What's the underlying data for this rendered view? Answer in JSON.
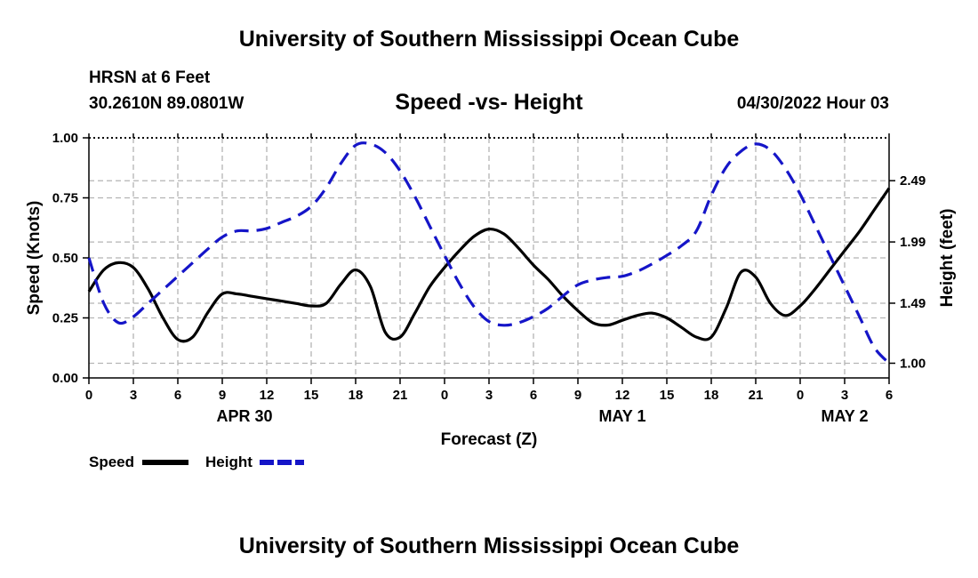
{
  "header": {
    "title_top": "University of Southern Mississippi Ocean Cube",
    "title_bottom": "University of Southern Mississippi Ocean Cube",
    "station": "HRSN at 6 Feet",
    "coords": "30.2610N  89.0801W",
    "chart_title": "Speed -vs- Height",
    "timestamp": "04/30/2022 Hour 03"
  },
  "chart_data": {
    "type": "line",
    "title": "Speed -vs- Height",
    "xlabel": "Forecast (Z)",
    "ylabel": "Speed (Knots)",
    "y2label": "Height (feet)",
    "xlim": [
      0,
      54
    ],
    "ylim": [
      0,
      1.0
    ],
    "y2lim": [
      0.88,
      2.84
    ],
    "grid": true,
    "x_tick_labels": [
      "0",
      "3",
      "6",
      "9",
      "12",
      "15",
      "18",
      "21",
      "0",
      "3",
      "6",
      "9",
      "12",
      "15",
      "18",
      "21",
      "0",
      "3",
      "6"
    ],
    "y_ticks": [
      {
        "value": 0.0,
        "label": "0.00"
      },
      {
        "value": 0.25,
        "label": "0.25"
      },
      {
        "value": 0.5,
        "label": "0.50"
      },
      {
        "value": 0.75,
        "label": "0.75"
      },
      {
        "value": 1.0,
        "label": "1.00"
      }
    ],
    "y2_ticks": [
      {
        "value": 1.0,
        "label": "1.00"
      },
      {
        "value": 1.49,
        "label": "1.49"
      },
      {
        "value": 1.99,
        "label": "1.99"
      },
      {
        "value": 2.49,
        "label": "2.49"
      }
    ],
    "day_labels": [
      {
        "x": 10.5,
        "label": "APR 30"
      },
      {
        "x": 36,
        "label": "MAY 1"
      },
      {
        "x": 51,
        "label": "MAY 2"
      }
    ],
    "legend": [
      {
        "name": "Speed",
        "color": "#000000",
        "style": "solid"
      },
      {
        "name": "Height",
        "color": "#1515c8",
        "style": "dashed"
      }
    ],
    "legend_placement": "bottom-left",
    "series": [
      {
        "name": "Speed",
        "axis": "left",
        "color": "#000000",
        "x": [
          0,
          1,
          2,
          3,
          4,
          5,
          6,
          7,
          8,
          9,
          10,
          11,
          12,
          13,
          14,
          15,
          16,
          17,
          18,
          19,
          20,
          21,
          22,
          23,
          24,
          25,
          26,
          27,
          28,
          29,
          30,
          31,
          32,
          33,
          34,
          35,
          36,
          37,
          38,
          39,
          40,
          41,
          42,
          43,
          44,
          45,
          46,
          47,
          48,
          49,
          50,
          51,
          52,
          53,
          54
        ],
        "values": [
          0.36,
          0.45,
          0.48,
          0.46,
          0.37,
          0.25,
          0.16,
          0.17,
          0.27,
          0.35,
          0.35,
          0.34,
          0.33,
          0.32,
          0.31,
          0.3,
          0.31,
          0.39,
          0.45,
          0.38,
          0.19,
          0.17,
          0.27,
          0.38,
          0.46,
          0.53,
          0.59,
          0.62,
          0.6,
          0.54,
          0.47,
          0.41,
          0.34,
          0.28,
          0.23,
          0.22,
          0.24,
          0.26,
          0.27,
          0.25,
          0.21,
          0.17,
          0.17,
          0.29,
          0.44,
          0.42,
          0.31,
          0.26,
          0.3,
          0.37,
          0.45,
          0.53,
          0.61,
          0.7,
          0.79
        ]
      },
      {
        "name": "Height",
        "axis": "right",
        "color": "#1515c8",
        "x": [
          0,
          1,
          2,
          3,
          4,
          5,
          6,
          7,
          8,
          9,
          10,
          11,
          12,
          13,
          14,
          15,
          16,
          17,
          18,
          19,
          20,
          21,
          22,
          23,
          24,
          25,
          26,
          27,
          28,
          29,
          30,
          31,
          32,
          33,
          34,
          35,
          36,
          37,
          38,
          39,
          40,
          41,
          42,
          43,
          44,
          45,
          46,
          47,
          48,
          49,
          50,
          51,
          52,
          53,
          54
        ],
        "values": [
          1.86,
          1.49,
          1.33,
          1.38,
          1.49,
          1.6,
          1.71,
          1.82,
          1.93,
          2.03,
          2.08,
          2.08,
          2.1,
          2.15,
          2.2,
          2.28,
          2.43,
          2.63,
          2.78,
          2.79,
          2.72,
          2.57,
          2.36,
          2.12,
          1.88,
          1.65,
          1.46,
          1.34,
          1.31,
          1.33,
          1.38,
          1.45,
          1.55,
          1.64,
          1.68,
          1.7,
          1.71,
          1.75,
          1.81,
          1.88,
          1.96,
          2.08,
          2.37,
          2.6,
          2.73,
          2.79,
          2.74,
          2.59,
          2.38,
          2.13,
          1.88,
          1.63,
          1.38,
          1.13,
          1.0
        ]
      }
    ]
  }
}
